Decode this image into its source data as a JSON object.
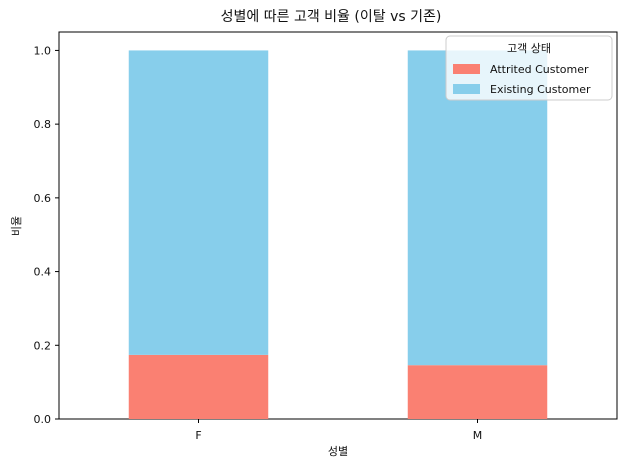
{
  "chart_data": {
    "type": "bar",
    "stacked": true,
    "title": "성별에 따른 고객 비율 (이탈 vs 기존)",
    "xlabel": "성별",
    "ylabel": "비율",
    "categories": [
      "F",
      "M"
    ],
    "series": [
      {
        "name": "Attrited Customer",
        "values": [
          0.174,
          0.146
        ],
        "color": "#FA8072"
      },
      {
        "name": "Existing Customer",
        "values": [
          0.826,
          0.854
        ],
        "color": "#87CEEB"
      }
    ],
    "ylim": [
      0,
      1.05
    ],
    "yticks": [
      "0.0",
      "0.2",
      "0.4",
      "0.6",
      "0.8",
      "1.0"
    ],
    "grid": false,
    "legend": {
      "title": "고객 상태",
      "placement": "top-right"
    }
  }
}
